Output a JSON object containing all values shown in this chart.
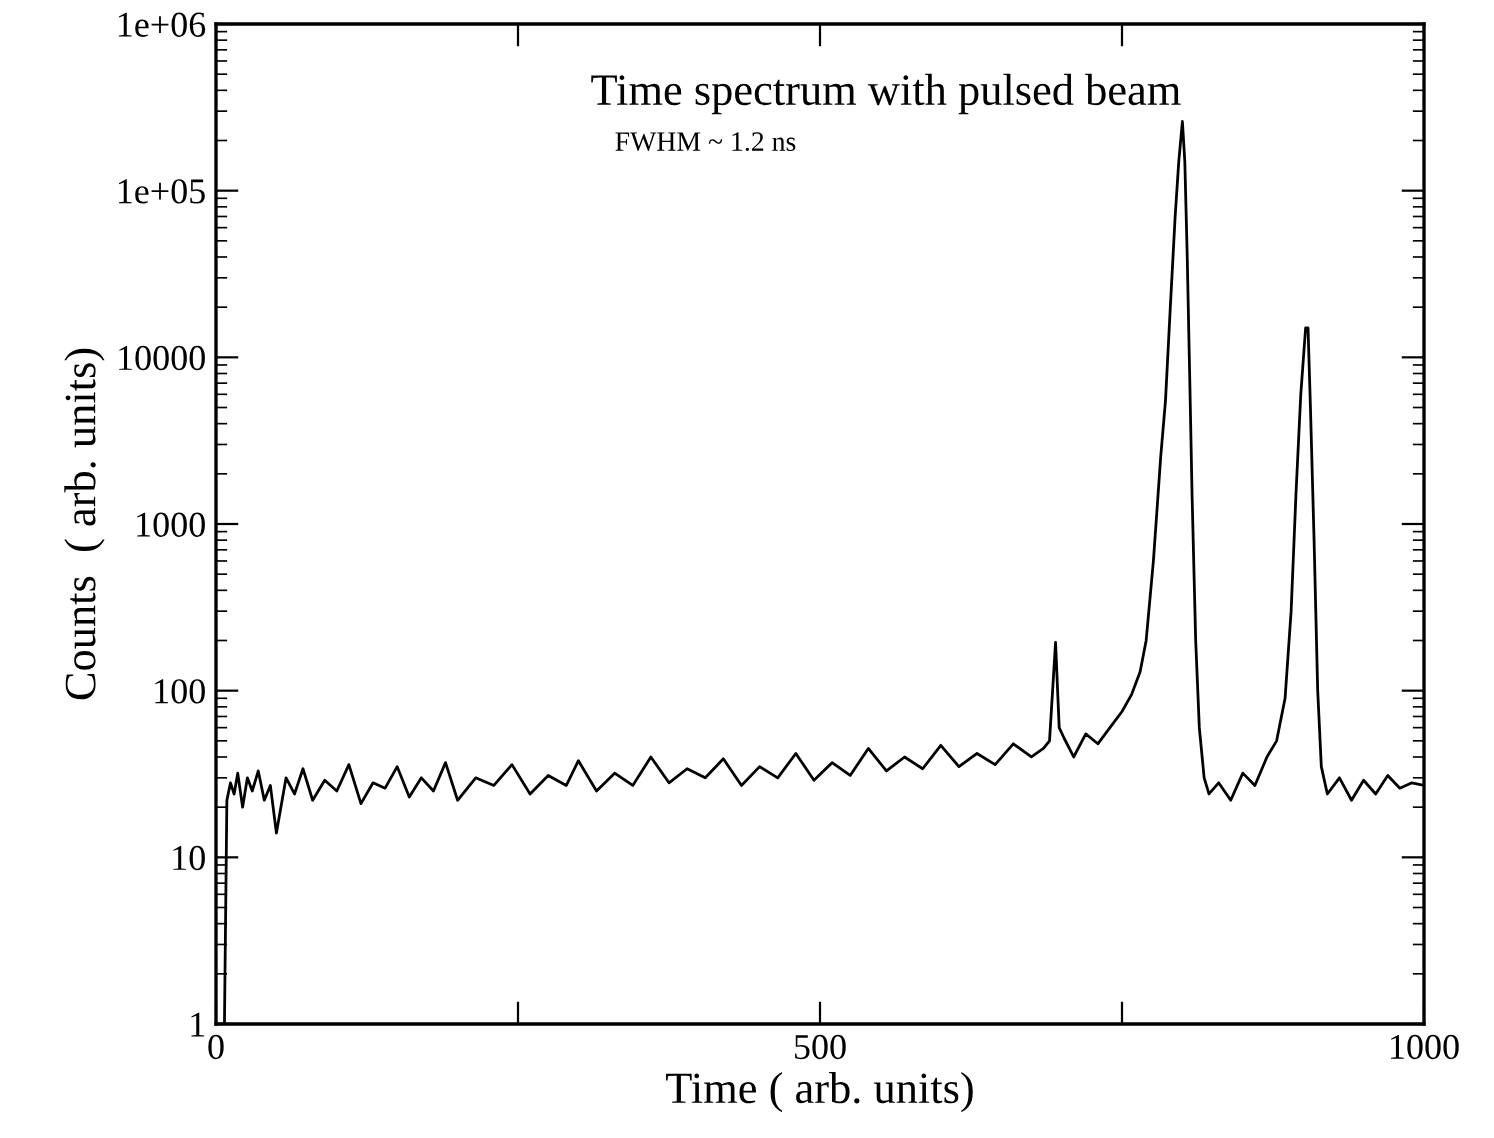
{
  "chart_data": {
    "type": "line",
    "title": "Time spectrum with pulsed beam",
    "subtitle": "FWHM ~ 1.2 ns",
    "xlabel": "Time ( arb. units)",
    "ylabel": "Counts  ( arb. units)",
    "log": "y",
    "grid": false,
    "legend": false,
    "line_style": "solid",
    "xlim": [
      0,
      1000
    ],
    "xticks": [
      0,
      {
        "value": 250,
        "label": null
      },
      500,
      {
        "value": 750,
        "label": null
      },
      1000
    ],
    "ylim": [
      1,
      1000000
    ],
    "yticks": [
      1,
      10,
      100,
      1000,
      10000,
      {
        "value": 100000,
        "label": "1e+05"
      },
      {
        "value": 1000000,
        "label": "1e+06"
      }
    ],
    "series": [
      {
        "color": "#000000",
        "x": [
          5,
          7,
          9,
          12,
          15,
          18,
          22,
          26,
          30,
          35,
          40,
          45,
          50,
          58,
          65,
          72,
          80,
          90,
          100,
          110,
          120,
          130,
          140,
          150,
          160,
          170,
          180,
          190,
          200,
          215,
          230,
          245,
          260,
          275,
          290,
          300,
          315,
          330,
          345,
          360,
          375,
          390,
          405,
          420,
          435,
          450,
          465,
          480,
          495,
          510,
          525,
          540,
          555,
          570,
          585,
          600,
          615,
          630,
          645,
          660,
          675,
          685,
          690,
          695,
          698,
          702,
          710,
          720,
          730,
          740,
          750,
          758,
          765,
          770,
          776,
          782,
          786,
          790,
          794,
          797,
          800,
          802,
          804,
          806,
          808,
          811,
          814,
          818,
          822,
          830,
          840,
          850,
          860,
          870,
          878,
          885,
          890,
          894,
          898,
          902,
          904,
          906,
          909,
          912,
          915,
          920,
          930,
          940,
          950,
          960,
          970,
          980,
          990,
          1000
        ],
        "values": [
          1,
          1,
          22,
          28,
          24,
          32,
          20,
          30,
          25,
          33,
          22,
          27,
          14,
          30,
          24,
          34,
          22,
          29,
          25,
          36,
          21,
          28,
          26,
          35,
          23,
          30,
          25,
          37,
          22,
          30,
          27,
          36,
          24,
          31,
          27,
          38,
          25,
          32,
          27,
          40,
          28,
          34,
          30,
          39,
          27,
          35,
          30,
          42,
          29,
          37,
          31,
          45,
          33,
          40,
          34,
          47,
          35,
          42,
          36,
          48,
          40,
          45,
          50,
          195,
          60,
          52,
          40,
          55,
          48,
          60,
          75,
          95,
          130,
          200,
          600,
          2500,
          5500,
          20000,
          70000,
          150000,
          260000,
          150000,
          40000,
          8000,
          1500,
          200,
          60,
          30,
          24,
          28,
          22,
          32,
          27,
          40,
          50,
          90,
          300,
          1500,
          6000,
          15000,
          15000,
          5000,
          800,
          100,
          35,
          24,
          30,
          22,
          29,
          24,
          31,
          26,
          28,
          27
        ]
      }
    ]
  }
}
